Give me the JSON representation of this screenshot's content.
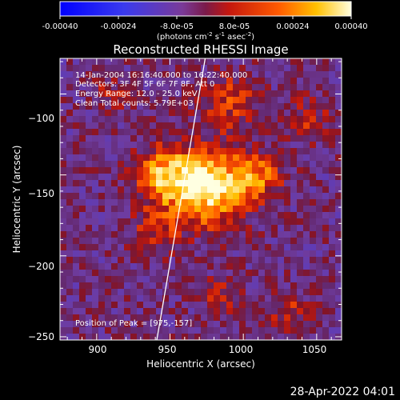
{
  "colorbar": {
    "ticks": [
      "-0.00040",
      "-0.00024",
      "-8.0e-05",
      "8.0e-05",
      "0.00024",
      "0.00040"
    ],
    "unit_prefix": "(photons cm",
    "unit_exp1": "-2",
    "unit_mid": " s",
    "unit_exp2": "-1",
    "unit_end": " asec",
    "unit_exp3": "-2",
    "unit_close": ")",
    "range": [
      -0.0004,
      0.0004
    ]
  },
  "chart_data": {
    "type": "heatmap",
    "title": "Reconstructed RHESSI Image",
    "xlabel": "Heliocentric X (arcsec)",
    "ylabel": "Heliocentric Y (arcsec)",
    "xlim": [
      875,
      1067
    ],
    "ylim": [
      -252,
      -78
    ],
    "x_ticks": [
      900,
      950,
      1000,
      1050
    ],
    "y_ticks": [
      -100,
      -150,
      -200,
      -250
    ],
    "x_tick_labels": [
      "900",
      "950",
      "1000",
      "1050"
    ],
    "y_tick_labels": [
      "−100",
      "−150",
      "−200",
      "−250"
    ],
    "limb_line": [
      [
        941,
        -252
      ],
      [
        974,
        -78
      ]
    ],
    "peak": [
      975,
      -157
    ],
    "sources": [
      {
        "x": 975,
        "y": -157,
        "sx": 20,
        "sy": 16,
        "amp": 1.0
      },
      {
        "x": 945,
        "y": -150,
        "sx": 14,
        "sy": 12,
        "amp": 0.55
      },
      {
        "x": 1010,
        "y": -150,
        "sx": 12,
        "sy": 10,
        "amp": 0.45
      },
      {
        "x": 990,
        "y": -105,
        "sx": 14,
        "sy": 12,
        "amp": 0.4
      },
      {
        "x": 1045,
        "y": -115,
        "sx": 10,
        "sy": 10,
        "amp": 0.3
      },
      {
        "x": 1030,
        "y": -235,
        "sx": 10,
        "sy": 8,
        "amp": 0.35
      },
      {
        "x": 985,
        "y": -225,
        "sx": 10,
        "sy": 8,
        "amp": 0.3
      },
      {
        "x": 910,
        "y": -100,
        "sx": 10,
        "sy": 8,
        "amp": 0.25
      },
      {
        "x": 940,
        "y": -185,
        "sx": 12,
        "sy": 10,
        "amp": 0.3
      }
    ],
    "annotations": {
      "time": "14-Jan-2004 16:16:40.000 to 16:22:40.000",
      "detectors": "Detectors: 3F 4F 5F 6F 7F 8F, Att 0",
      "energy": "Energy Range: 12.0 - 25.0 keV",
      "clean": "Clean     Total counts: 5.79E+03",
      "peak": "Position of Peak = [975,-157]"
    }
  },
  "footer": {
    "timestamp": "28-Apr-2022 04:01"
  }
}
